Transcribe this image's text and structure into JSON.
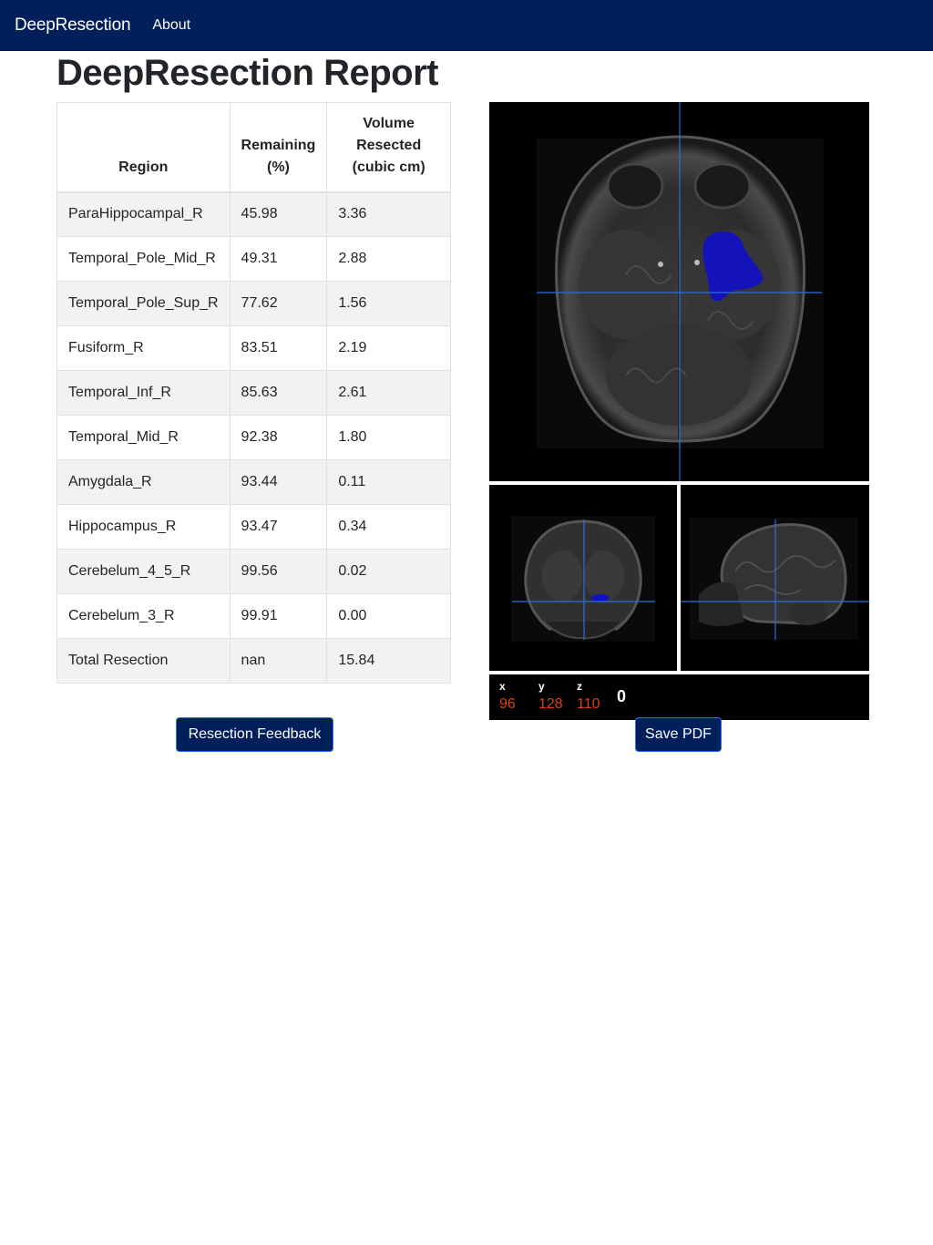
{
  "nav": {
    "brand": "DeepResection",
    "about": "About"
  },
  "page": {
    "title": "DeepResection Report"
  },
  "table": {
    "headers": [
      "Region",
      "Remaining (%)",
      "Volume Resected (cubic cm)"
    ],
    "rows": [
      [
        "ParaHippocampal_R",
        "45.98",
        "3.36"
      ],
      [
        "Temporal_Pole_Mid_R",
        "49.31",
        "2.88"
      ],
      [
        "Temporal_Pole_Sup_R",
        "77.62",
        "1.56"
      ],
      [
        "Fusiform_R",
        "83.51",
        "2.19"
      ],
      [
        "Temporal_Inf_R",
        "85.63",
        "2.61"
      ],
      [
        "Temporal_Mid_R",
        "92.38",
        "1.80"
      ],
      [
        "Amygdala_R",
        "93.44",
        "0.11"
      ],
      [
        "Hippocampus_R",
        "93.47",
        "0.34"
      ],
      [
        "Cerebelum_4_5_R",
        "99.56",
        "0.02"
      ],
      [
        "Cerebelum_3_R",
        "99.91",
        "0.00"
      ],
      [
        "Total Resection",
        "nan",
        "15.84"
      ]
    ]
  },
  "buttons": {
    "feedback": "Resection Feedback",
    "save_pdf": "Save PDF"
  },
  "viewer": {
    "coords": {
      "x_label": "x",
      "y_label": "y",
      "z_label": "z",
      "x": "96",
      "y": "128",
      "z": "110"
    },
    "intensity": "0",
    "crosshair_color": "#2a6fdb",
    "resection_color": "#1010c8"
  }
}
